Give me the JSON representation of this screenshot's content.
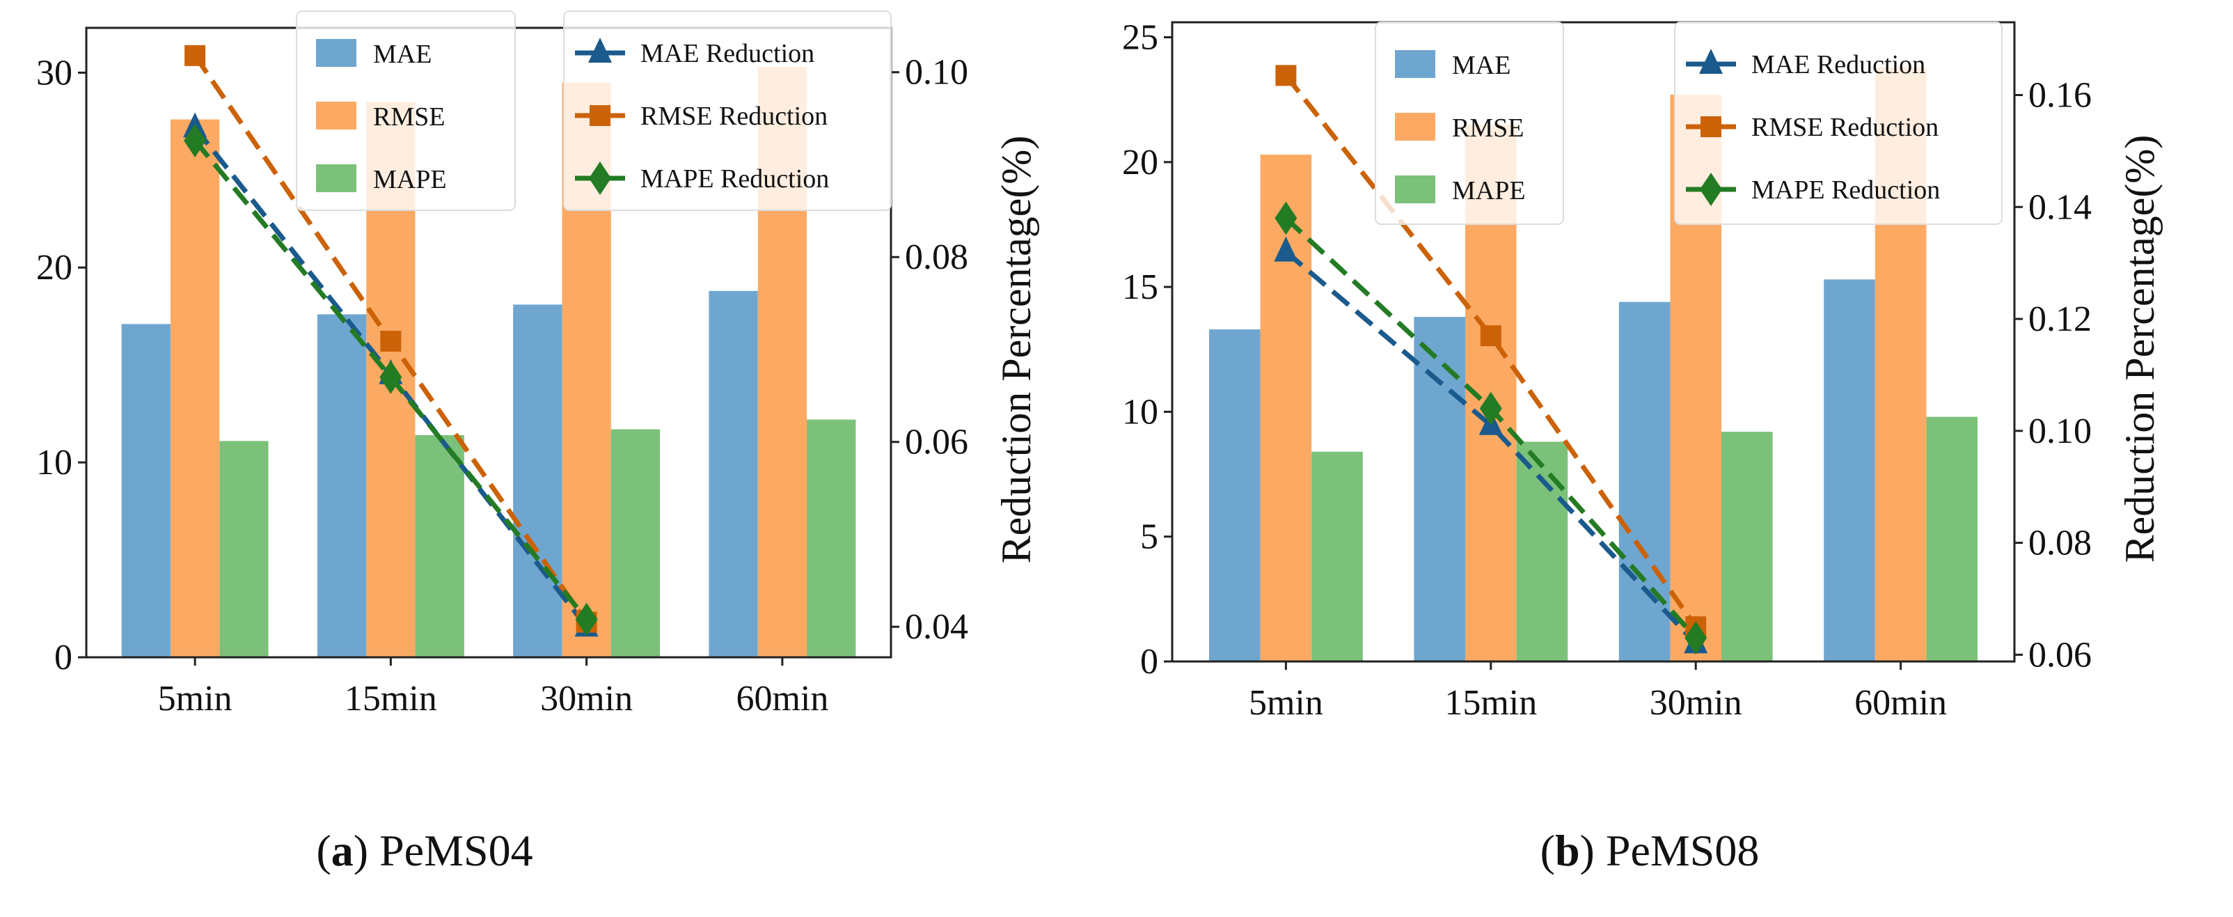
{
  "colors": {
    "MAE": "#6fa6d0",
    "RMSE": "#fcaa63",
    "MAPE": "#7bc17a",
    "MAE Reduction": "#1a5a8c",
    "RMSE Reduction": "#cc6207",
    "MAPE Reduction": "#237b23"
  },
  "captions": [
    {
      "label": "a",
      "text": " PeMS04"
    },
    {
      "label": "b",
      "text": " PeMS08"
    }
  ],
  "chart_data": [
    {
      "type": "bar+line",
      "title": "PeMS04",
      "categories": [
        "5min",
        "15min",
        "30min",
        "60min"
      ],
      "ylabel": "",
      "y2label": "Reduction Percentage(%)",
      "ylim": [
        0,
        32.3
      ],
      "yticks": [
        0,
        10,
        20,
        30
      ],
      "y2lim": [
        0.0367,
        0.1048
      ],
      "y2ticks": [
        "0.04",
        "0.06",
        "0.08",
        "0.10"
      ],
      "bar_series": [
        {
          "name": "MAE",
          "values": [
            17.1,
            17.6,
            18.1,
            18.8
          ]
        },
        {
          "name": "RMSE",
          "values": [
            27.6,
            28.5,
            29.5,
            30.3
          ]
        },
        {
          "name": "MAPE",
          "values": [
            11.1,
            11.4,
            11.7,
            12.2
          ]
        }
      ],
      "line_series": [
        {
          "name": "MAE Reduction",
          "marker": "triangle",
          "values": [
            0.094,
            0.0673,
            0.04
          ]
        },
        {
          "name": "RMSE Reduction",
          "marker": "square",
          "values": [
            0.1018,
            0.0709,
            0.0405
          ]
        },
        {
          "name": "MAPE Reduction",
          "marker": "diamond",
          "values": [
            0.0926,
            0.067,
            0.0408
          ]
        }
      ],
      "legend": [
        "top-center",
        "top-right"
      ]
    },
    {
      "type": "bar+line",
      "title": "PeMS08",
      "categories": [
        "5min",
        "15min",
        "30min",
        "60min"
      ],
      "ylabel": "",
      "y2label": "Reduction Percentage(%)",
      "ylim": [
        0,
        25.6
      ],
      "yticks": [
        0,
        5,
        10,
        15,
        20,
        25
      ],
      "y2lim": [
        0.0588,
        0.173
      ],
      "y2ticks": [
        "0.06",
        "0.08",
        "0.10",
        "0.12",
        "0.14",
        "0.16"
      ],
      "bar_series": [
        {
          "name": "MAE",
          "values": [
            13.3,
            13.8,
            14.4,
            15.3
          ]
        },
        {
          "name": "RMSE",
          "values": [
            20.3,
            21.5,
            22.7,
            23.8
          ]
        },
        {
          "name": "MAPE",
          "values": [
            8.4,
            8.8,
            9.2,
            9.8
          ]
        }
      ],
      "line_series": [
        {
          "name": "MAE Reduction",
          "marker": "triangle",
          "values": [
            0.132,
            0.101,
            0.062
          ]
        },
        {
          "name": "RMSE Reduction",
          "marker": "square",
          "values": [
            0.1635,
            0.117,
            0.065
          ]
        },
        {
          "name": "MAPE Reduction",
          "marker": "diamond",
          "values": [
            0.138,
            0.104,
            0.063
          ]
        }
      ],
      "legend": [
        "top-center",
        "top-right"
      ]
    }
  ]
}
